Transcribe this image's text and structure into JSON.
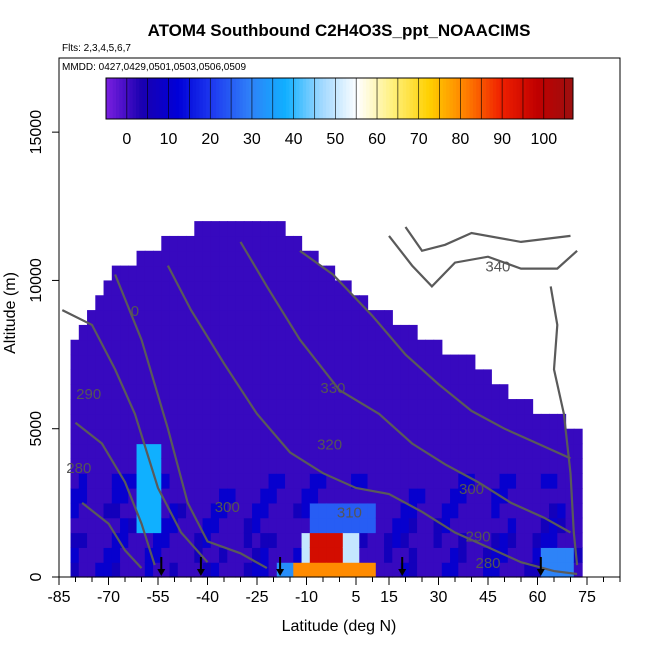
{
  "chart_data": {
    "type": "heatmap",
    "title": "ATOM4 Southbound C2H4O3S_ppt_NOAACIMS",
    "flights_note": "Flts: 2,3,4,5,6,7",
    "dates_note": "MMDD: 0427,0429,0501,0503,0506,0509",
    "xlabel": "Latitude (deg N)",
    "ylabel": "Altitude (m)",
    "xlim": [
      -85,
      85
    ],
    "ylim": [
      0,
      17500
    ],
    "x_ticks": [
      "-85",
      "-70",
      "-55",
      "-40",
      "-25",
      "-10",
      "5",
      "15",
      "30",
      "45",
      "60",
      "75"
    ],
    "x_tick_values": [
      -85,
      -70,
      -55,
      -40,
      -25,
      -10,
      5,
      15,
      30,
      45,
      60,
      75
    ],
    "y_ticks": [
      "0",
      "5000",
      "10000",
      "15000"
    ],
    "y_tick_values": [
      0,
      5000,
      10000,
      15000
    ],
    "colorbar": {
      "min": -5,
      "max": 107,
      "ticks": [
        "0",
        "10",
        "20",
        "30",
        "40",
        "50",
        "60",
        "70",
        "80",
        "90",
        "100"
      ],
      "tick_values": [
        0,
        10,
        20,
        30,
        40,
        50,
        60,
        70,
        80,
        90,
        100
      ],
      "colors": [
        "#7a1fe0",
        "#1a00b0",
        "#0000d8",
        "#1f3cf0",
        "#2f80f8",
        "#10b0ff",
        "#a0d8ff",
        "#ffffff",
        "#fff07a",
        "#ffd000",
        "#ff8000",
        "#f02000",
        "#c00000",
        "#9c1010"
      ]
    },
    "background_value": 1,
    "hotspots": [
      {
        "lat_min": -62,
        "lat_max": -55,
        "alt_min": 1500,
        "alt_max": 4500,
        "value": 38
      },
      {
        "lat_min": -18,
        "lat_max": -12,
        "alt_min": 0,
        "alt_max": 600,
        "value": 32
      },
      {
        "lat_min": -15,
        "lat_max": 10,
        "alt_min": 0,
        "alt_max": 400,
        "value": 80
      },
      {
        "lat_min": -12,
        "lat_max": 5,
        "alt_min": 400,
        "alt_max": 1500,
        "value": 50
      },
      {
        "lat_min": -8,
        "lat_max": 0,
        "alt_min": 300,
        "alt_max": 1500,
        "value": 95
      },
      {
        "lat_min": -10,
        "lat_max": 10,
        "alt_min": 1500,
        "alt_max": 2500,
        "value": 25
      },
      {
        "lat_min": -5,
        "lat_max": 5,
        "alt_min": 2000,
        "alt_max": 2200,
        "value": 85
      },
      {
        "lat_min": 62,
        "lat_max": 72,
        "alt_min": 0,
        "alt_max": 800,
        "value": 30
      }
    ],
    "flight_markers_lat": [
      -54,
      -42,
      -18,
      19,
      61
    ],
    "contour_labels": [
      {
        "label": "290",
        "lat": -76,
        "alt": 6000
      },
      {
        "label": "280",
        "lat": -79,
        "alt": 3500
      },
      {
        "label": "300",
        "lat": -34,
        "alt": 2200
      },
      {
        "label": "310",
        "lat": 3,
        "alt": 2000
      },
      {
        "label": "320",
        "lat": -3,
        "alt": 4300
      },
      {
        "label": "330",
        "lat": -2,
        "alt": 6200
      },
      {
        "label": "340",
        "lat": 48,
        "alt": 10300
      },
      {
        "label": "300",
        "lat": 40,
        "alt": 2800
      },
      {
        "label": "290",
        "lat": 42,
        "alt": 1200
      },
      {
        "label": "280",
        "lat": 45,
        "alt": 300
      },
      {
        "label": "0",
        "lat": -62,
        "alt": 8800
      }
    ]
  }
}
